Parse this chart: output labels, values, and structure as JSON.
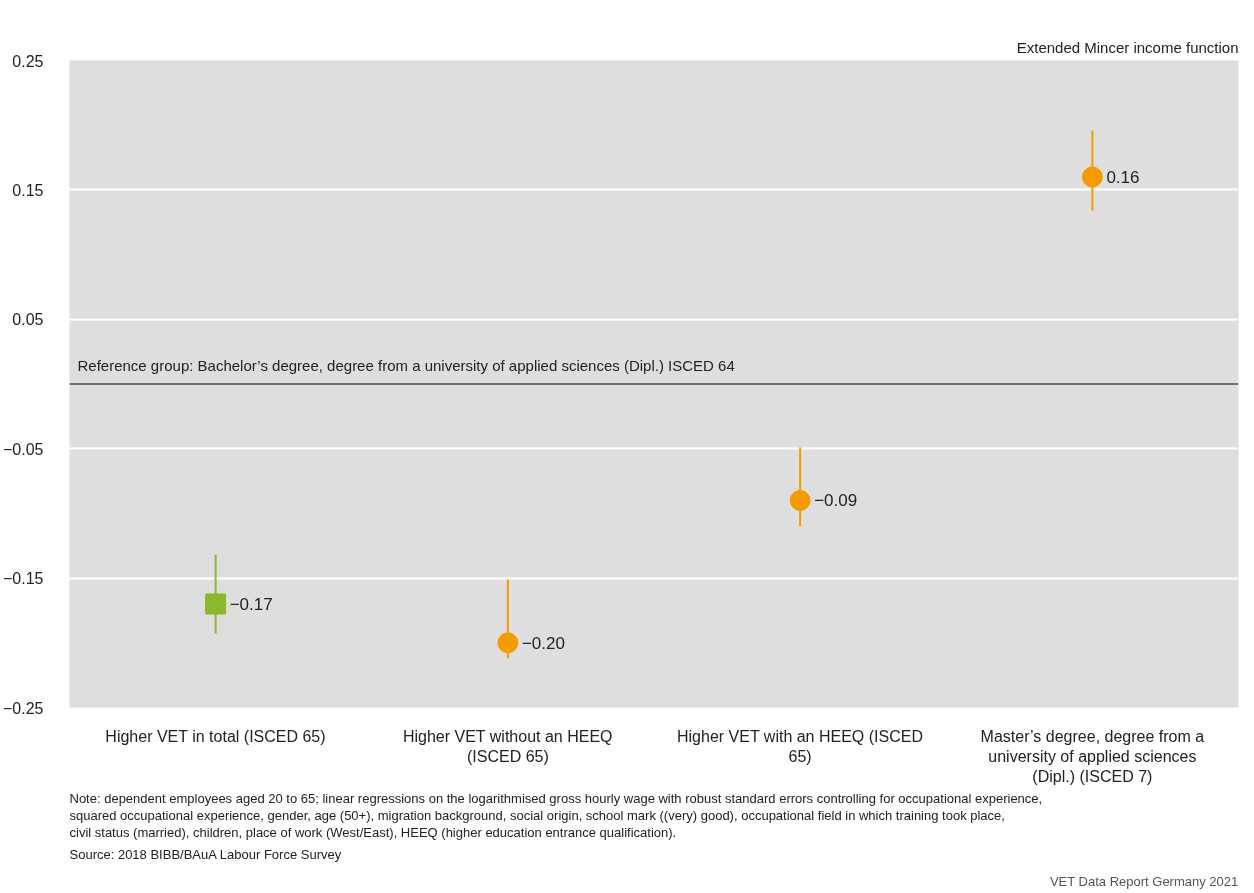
{
  "chart_data": {
    "type": "scatter",
    "categories": [
      "Higher VET in total (ISCED 65)",
      "Higher VET without an HEEQ (ISCED 65)",
      "Higher VET with an HEEQ (ISCED 65)",
      "Master’s degree, degree from a university of applied sciences (Dipl.) (ISCED 7)"
    ],
    "series": [
      {
        "color": "#8cb82b",
        "marker": "square",
        "values": [
          -0.17,
          null,
          null,
          null
        ],
        "errors": [
          [
            -0.193,
            -0.132
          ],
          null,
          null,
          null
        ],
        "value_labels": [
          "−0.17",
          null,
          null,
          null
        ]
      },
      {
        "color": "#f39b00",
        "marker": "circle",
        "values": [
          null,
          -0.2,
          -0.09,
          0.16
        ],
        "errors": [
          null,
          [
            -0.212,
            -0.151
          ],
          [
            -0.11,
            -0.049
          ],
          [
            0.134,
            0.196
          ]
        ],
        "value_labels": [
          null,
          "−0.20",
          "−0.09",
          "0.16"
        ]
      }
    ],
    "ylim": [
      -0.25,
      0.25
    ],
    "yticks": [
      {
        "value": -0.25,
        "label": "−0.25"
      },
      {
        "value": -0.15,
        "label": "−0.15"
      },
      {
        "value": -0.05,
        "label": "−0.05"
      },
      0.05,
      0.15,
      0.25
    ],
    "grid": "y",
    "ref_lines": [
      {
        "axis": "y",
        "value": 0,
        "label": "Reference group: Bachelor’s degree, degree from a university of applied sciences (Dipl.) ISCED 64",
        "color": "#707070"
      }
    ],
    "annotations": [
      "Extended Mincer income function",
      "Note: dependent employees aged 20 to 65; linear regressions on the logarithmised gross hourly wage with robust standard errors controlling for occupational experience, squared occupational experience, gender, age (50+), migration background, social origin, school mark ((very) good), occupational field in which training took place, civil status (married), children, place of work (West/East), HEEQ (higher education entrance qualification).",
      "Source: 2018 BIBB/BAuA Labour Force Survey",
      "VET Data Report Germany 2021"
    ]
  }
}
